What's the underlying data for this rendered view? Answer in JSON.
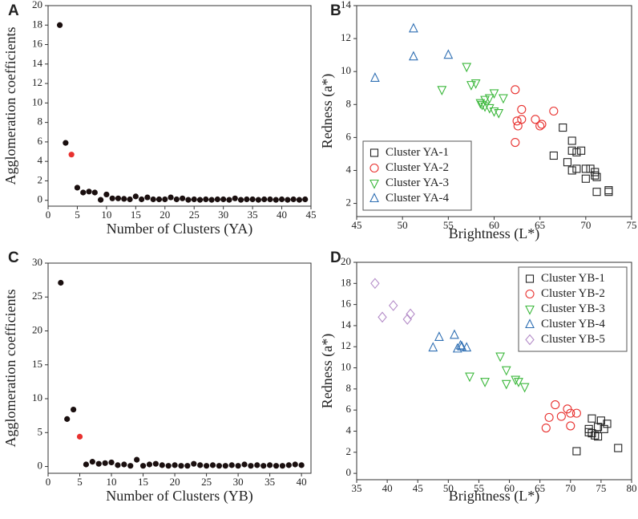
{
  "chart_data": [
    {
      "type": "scatter",
      "panel_label": "A",
      "xlabel": "Number of Clusters (YA)",
      "ylabel": "Agglomeration coefficients",
      "xlim": [
        0,
        45
      ],
      "xticks": [
        0,
        5,
        10,
        15,
        20,
        25,
        30,
        35,
        40,
        45
      ],
      "ylim": [
        -0.6,
        20
      ],
      "yticks": [
        0,
        2,
        4,
        6,
        8,
        10,
        12,
        14,
        16,
        18,
        20
      ],
      "series": [
        {
          "color": "#1a0f0f",
          "marker": "dot",
          "x": [
            2,
            3,
            5,
            6,
            7,
            8,
            9,
            10,
            11,
            12,
            13,
            14,
            15,
            16,
            17,
            18,
            19,
            20,
            21,
            22,
            23,
            24,
            25,
            26,
            27,
            28,
            29,
            30,
            31,
            32,
            33,
            34,
            35,
            36,
            37,
            38,
            39,
            40,
            41,
            42,
            43,
            44
          ],
          "values": [
            18,
            5.9,
            1.3,
            0.8,
            0.9,
            0.8,
            0.05,
            0.6,
            0.2,
            0.2,
            0.15,
            0.1,
            0.4,
            0.1,
            0.3,
            0.1,
            0.1,
            0.1,
            0.3,
            0.1,
            0.2,
            0.05,
            0.1,
            0.05,
            0.1,
            0.05,
            0.1,
            0.1,
            0.05,
            0.2,
            0.05,
            0.1,
            0.1,
            0.05,
            0.1,
            0.1,
            0.05,
            0.1,
            0.05,
            0.1,
            0.05,
            0.1
          ]
        },
        {
          "color": "#e8312f",
          "marker": "dot",
          "x": [
            4
          ],
          "values": [
            4.7
          ]
        }
      ]
    },
    {
      "type": "scatter",
      "panel_label": "B",
      "xlabel": "Brightness (L*)",
      "ylabel": "Redness (a*)",
      "xlim": [
        45,
        75
      ],
      "xticks": [
        45,
        50,
        55,
        60,
        65,
        70,
        75
      ],
      "ylim": [
        1.2,
        14
      ],
      "yticks": [
        2,
        4,
        6,
        8,
        10,
        12,
        14
      ],
      "legend": "lower left",
      "series": [
        {
          "name": "Cluster YA-1",
          "color": "#222222",
          "marker": "square",
          "x": [
            67.5,
            68.5,
            66.5,
            68.5,
            69,
            69.5,
            68,
            68.5,
            69,
            70,
            70.5,
            71,
            71,
            71.2,
            70,
            71.2,
            72.5,
            72.5
          ],
          "values": [
            6.6,
            5.8,
            4.9,
            5.2,
            5.1,
            5.2,
            4.5,
            4.0,
            4.1,
            4.1,
            4.1,
            3.9,
            3.7,
            3.6,
            3.5,
            2.7,
            2.8,
            2.7
          ]
        },
        {
          "name": "Cluster YA-2",
          "color": "#e8312f",
          "marker": "circle",
          "x": [
            62.3,
            63,
            62.5,
            63,
            62.6,
            64.5,
            66.5,
            65,
            65.2,
            62.3
          ],
          "values": [
            8.9,
            7.7,
            7.0,
            7.1,
            6.7,
            7.1,
            7.6,
            6.7,
            6.8,
            5.7
          ]
        },
        {
          "name": "Cluster YA-3",
          "color": "#3cb83c",
          "marker": "triangle-down",
          "x": [
            57,
            57.5,
            58,
            54.3,
            59,
            59.5,
            60,
            61,
            58.5,
            59,
            60,
            60.5,
            59.5,
            58.7
          ],
          "values": [
            10.3,
            9.2,
            9.3,
            8.9,
            8.3,
            8.4,
            8.7,
            8.4,
            8.1,
            7.9,
            7.6,
            7.5,
            7.8,
            8.0
          ]
        },
        {
          "name": "Cluster YA-4",
          "color": "#2f6fb3",
          "marker": "triangle",
          "x": [
            47,
            51.2,
            51.2,
            55
          ],
          "values": [
            9.6,
            12.6,
            10.9,
            11.0
          ]
        }
      ]
    },
    {
      "type": "scatter",
      "panel_label": "C",
      "xlabel": "Number of Clusters (YB)",
      "ylabel": "Agglomeration coefficients",
      "xlim": [
        0,
        41.5
      ],
      "xticks": [
        0,
        5,
        10,
        15,
        20,
        25,
        30,
        35,
        40
      ],
      "ylim": [
        -1,
        30
      ],
      "yticks": [
        0,
        5,
        10,
        15,
        20,
        25,
        30
      ],
      "series": [
        {
          "color": "#1a0f0f",
          "marker": "dot",
          "x": [
            2,
            3,
            4,
            6,
            7,
            8,
            9,
            10,
            11,
            12,
            13,
            14,
            15,
            16,
            17,
            18,
            19,
            20,
            21,
            22,
            23,
            24,
            25,
            26,
            27,
            28,
            29,
            30,
            31,
            32,
            33,
            34,
            35,
            36,
            37,
            38,
            39,
            40
          ],
          "values": [
            27.1,
            7,
            8.4,
            0.3,
            0.7,
            0.4,
            0.5,
            0.6,
            0.2,
            0.3,
            0.1,
            1.0,
            0.1,
            0.3,
            0.4,
            0.2,
            0.1,
            0.2,
            0.1,
            0.1,
            0.4,
            0.2,
            0.1,
            0.2,
            0.1,
            0.1,
            0.2,
            0.1,
            0.3,
            0.1,
            0.2,
            0.1,
            0.2,
            0.1,
            0.1,
            0.2,
            0.3,
            0.2
          ]
        },
        {
          "color": "#e8312f",
          "marker": "dot",
          "x": [
            5
          ],
          "values": [
            4.4
          ]
        }
      ]
    },
    {
      "type": "scatter",
      "panel_label": "D",
      "xlabel": "Brightness (L*)",
      "ylabel": "Redness (a*)",
      "xlim": [
        35,
        80
      ],
      "xticks": [
        35,
        40,
        45,
        50,
        55,
        60,
        65,
        70,
        75,
        80
      ],
      "ylim": [
        -0.6,
        20
      ],
      "yticks": [
        0,
        2,
        4,
        6,
        8,
        10,
        12,
        14,
        16,
        18,
        20
      ],
      "legend": "upper right",
      "series": [
        {
          "name": "Cluster YB-1",
          "color": "#222222",
          "marker": "square",
          "x": [
            73.5,
            75,
            74.5,
            76,
            73,
            73,
            75.5,
            74,
            74.5,
            73.5,
            71,
            77.8
          ],
          "values": [
            5.2,
            5.0,
            4.4,
            4.7,
            4.2,
            3.9,
            4.2,
            3.6,
            3.5,
            3.8,
            2.1,
            2.4
          ]
        },
        {
          "name": "Cluster YB-2",
          "color": "#e8312f",
          "marker": "circle",
          "x": [
            67.5,
            69.5,
            70,
            71,
            66.5,
            68.5,
            66,
            70
          ],
          "values": [
            6.5,
            6.1,
            5.7,
            5.7,
            5.3,
            5.4,
            4.3,
            4.5
          ]
        },
        {
          "name": "Cluster YB-3",
          "color": "#3cb83c",
          "marker": "triangle-down",
          "x": [
            58.5,
            59.5,
            53.5,
            56,
            59.5,
            61,
            61.5,
            62.5
          ],
          "values": [
            11.1,
            9.8,
            9.2,
            8.7,
            8.5,
            8.9,
            8.7,
            8.2
          ]
        },
        {
          "name": "Cluster YB-4",
          "color": "#2f6fb3",
          "marker": "triangle",
          "x": [
            47.5,
            48.5,
            51,
            52,
            51.5,
            53,
            52.2
          ],
          "values": [
            11.9,
            12.9,
            13.1,
            12.1,
            11.8,
            11.9,
            12.0
          ]
        },
        {
          "name": "Cluster YB-5",
          "color": "#b48cc8",
          "marker": "diamond",
          "x": [
            38,
            39.2,
            41,
            43.3,
            43.8
          ],
          "values": [
            18.0,
            14.8,
            15.9,
            14.6,
            15.1
          ]
        }
      ]
    }
  ]
}
